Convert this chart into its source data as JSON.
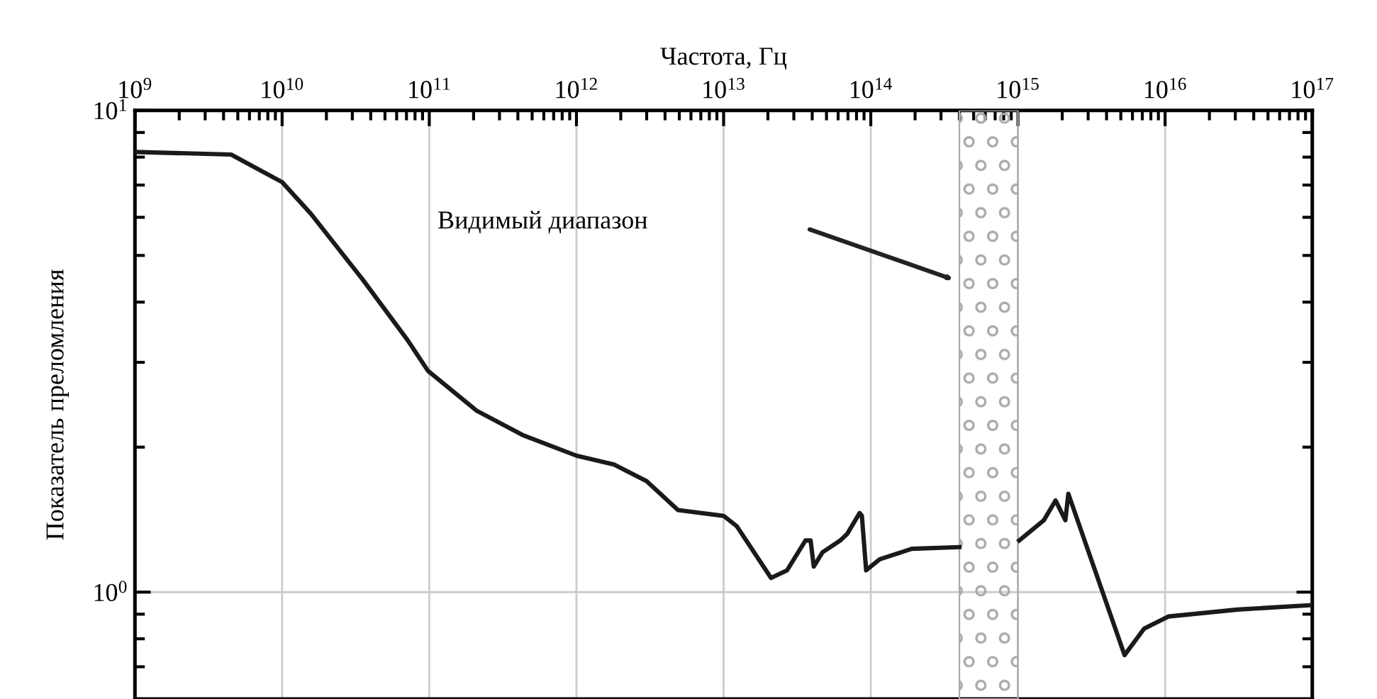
{
  "chart_data": {
    "type": "line",
    "xlabel": "Частота, Гц",
    "ylabel": "Показатель преломления",
    "log": "xy",
    "grid": true,
    "marker": "none",
    "line_style": "solid",
    "x": [
      1000000000.0,
      4500000000.0,
      10000000000.0,
      15700000000.0,
      35000000000.0,
      71000000000.0,
      98000000000.0,
      210000000000.0,
      430000000000.0,
      1000000000000.0,
      1800000000000.0,
      3000000000000.0,
      4900000000000.0,
      10000000000000.0,
      12300000000000.0,
      21000000000000.0,
      27000000000000.0,
      36000000000000.0,
      39000000000000.0,
      41000000000000.0,
      47000000000000.0,
      62000000000000.0,
      69000000000000.0,
      84000000000000.0,
      87000000000000.0,
      93000000000000.0,
      115000000000000.0,
      190000000000000.0,
      400000000000000.0,
      600000000000000.0,
      1020000000000000.0,
      1500000000000000.0,
      1800000000000000.0,
      2100000000000000.0,
      2200000000000000.0,
      5300000000000000.0,
      7200000000000000.0,
      1.05e+16,
      3.1e+16,
      1e+17
    ],
    "series": [
      {
        "color": "#1a1a1a",
        "values": [
          8.2,
          8.1,
          7.1,
          6.1,
          4.47,
          3.34,
          2.88,
          2.38,
          2.12,
          1.92,
          1.84,
          1.7,
          1.48,
          1.44,
          1.37,
          1.07,
          1.11,
          1.28,
          1.28,
          1.13,
          1.21,
          1.28,
          1.32,
          1.46,
          1.44,
          1.11,
          1.17,
          1.23,
          1.24,
          null,
          1.28,
          1.41,
          1.55,
          1.41,
          1.6,
          0.74,
          0.84,
          0.89,
          0.92,
          0.94
        ]
      }
    ],
    "xlim": [
      1000000000.0,
      1e+17
    ],
    "ylim": [
      0.6,
      10
    ],
    "xticks": [
      {
        "value": 1000000000.0,
        "label": "10$^{9}$"
      },
      {
        "value": 10000000000.0,
        "label": "10$^{10}$"
      },
      {
        "value": 100000000000.0,
        "label": "10$^{11}$"
      },
      {
        "value": 1000000000000.0,
        "label": "10$^{12}$"
      },
      {
        "value": 10000000000000.0,
        "label": "10$^{13}$"
      },
      {
        "value": 100000000000000.0,
        "label": "10$^{14}$"
      },
      {
        "value": 1000000000000000.0,
        "label": "10$^{15}$"
      },
      {
        "value": 1e+16,
        "label": "10$^{16}$"
      },
      {
        "value": 1e+17,
        "label": "10$^{17}$"
      }
    ],
    "yticks": [
      {
        "value": 1,
        "label": "10$^{0}$"
      },
      {
        "value": 10,
        "label": "10$^{1}$"
      }
    ],
    "bands": [
      {
        "axis": "x",
        "from": 400000000000000.0,
        "to": 1000000000000000.0,
        "color": "#aaaaaa"
      }
    ],
    "annotations": [
      "Видимый диапазон"
    ]
  }
}
